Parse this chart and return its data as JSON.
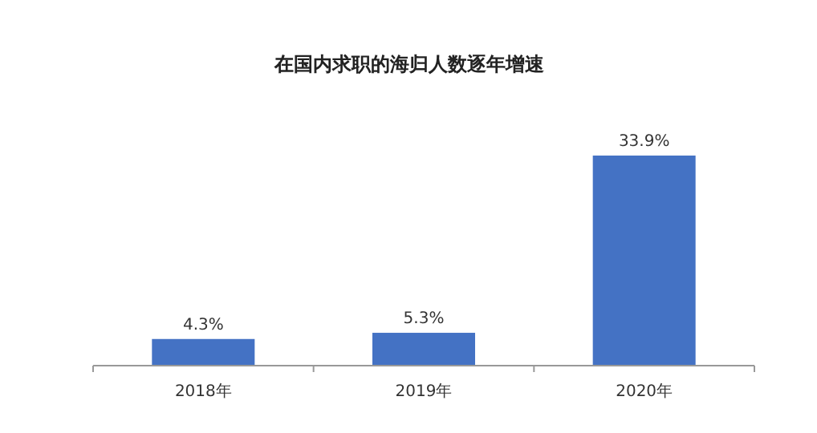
{
  "chart_data": {
    "type": "bar",
    "title": "在国内求职的海归人数逐年增速",
    "categories": [
      "2018年",
      "2019年",
      "2020年"
    ],
    "values": [
      4.3,
      5.3,
      33.9
    ],
    "value_labels": [
      "4.3%",
      "5.3%",
      "33.9%"
    ],
    "color": "#4472c4"
  }
}
